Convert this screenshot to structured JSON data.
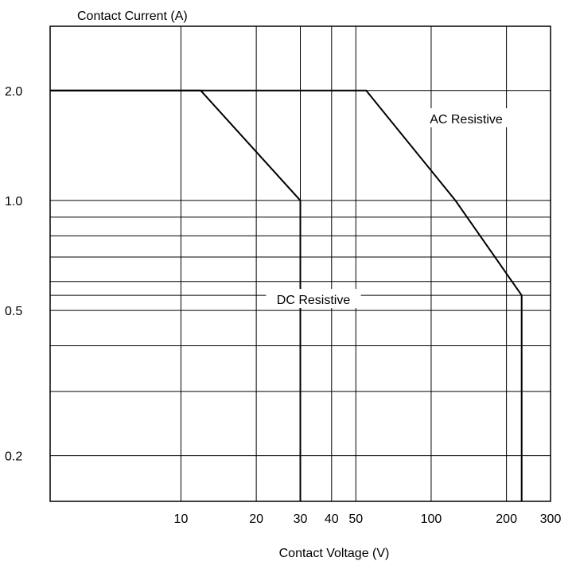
{
  "chart_data": {
    "type": "line",
    "ylabel": "Contact Current (A)",
    "xlabel": "Contact Voltage (V)",
    "x_scale": "log",
    "y_scale": "log",
    "xlim": [
      3,
      300
    ],
    "ylim": [
      0.15,
      3
    ],
    "grid": true,
    "x_ticks": [
      {
        "value": 10,
        "label": "10"
      },
      {
        "value": 20,
        "label": "20"
      },
      {
        "value": 30,
        "label": "30"
      },
      {
        "value": 40,
        "label": "40"
      },
      {
        "value": 50,
        "label": "50"
      },
      {
        "value": 100,
        "label": "100"
      },
      {
        "value": 200,
        "label": "200"
      },
      {
        "value": 300,
        "label": "300"
      }
    ],
    "y_ticks": [
      {
        "value": 2.0,
        "label": "2.0"
      },
      {
        "value": 1.0,
        "label": "1.0"
      },
      {
        "value": 0.5,
        "label": "0.5"
      },
      {
        "value": 0.2,
        "label": "0.2"
      }
    ],
    "y_minor_gridlines": [
      0.9,
      0.8,
      0.7,
      0.6,
      0.55,
      0.4,
      0.3
    ],
    "series": [
      {
        "name": "DC Resistive",
        "points": [
          [
            3,
            2.0
          ],
          [
            12,
            2.0
          ],
          [
            30,
            1.0
          ],
          [
            30,
            0.15
          ]
        ]
      },
      {
        "name": "AC Resistive",
        "points": [
          [
            3,
            2.0
          ],
          [
            55,
            2.0
          ],
          [
            125,
            1.0
          ],
          [
            230,
            0.55
          ],
          [
            230,
            0.15
          ]
        ]
      }
    ]
  }
}
